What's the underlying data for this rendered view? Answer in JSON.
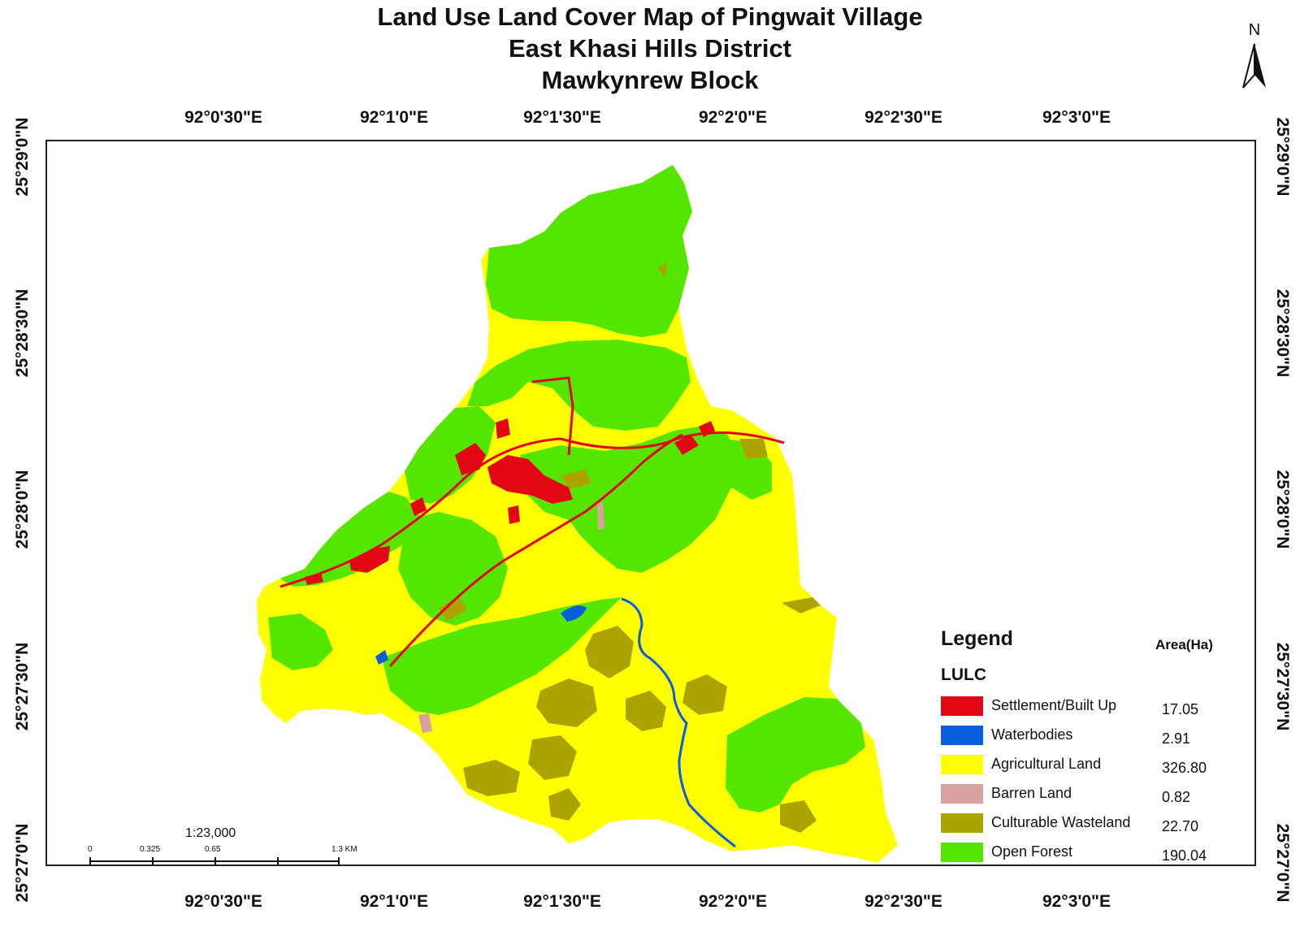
{
  "title": {
    "line1": "Land Use Land Cover Map of Pingwait Village",
    "line2": "East Khasi Hills District",
    "line3": "Mawkynrew Block"
  },
  "north_arrow": {
    "label": "N"
  },
  "axes": {
    "longitude_ticks": [
      "92°0'30\"E",
      "92°1'0\"E",
      "92°1'30\"E",
      "92°2'0\"E",
      "92°2'30\"E",
      "92°3'0\"E"
    ],
    "latitude_ticks": [
      "25°29'0\"N",
      "25°28'30\"N",
      "25°28'0\"N",
      "25°27'30\"N",
      "25°27'0\"N"
    ]
  },
  "legend": {
    "title": "Legend",
    "subtitle": "LULC",
    "area_header": "Area(Ha)",
    "items": [
      {
        "label": "Settlement/Built Up",
        "area": "17.05",
        "color": "#e30613"
      },
      {
        "label": "Waterbodies",
        "area": "2.91",
        "color": "#0a5ede"
      },
      {
        "label": "Agricultural Land",
        "area": "326.80",
        "color": "#ffff00"
      },
      {
        "label": "Barren Land",
        "area": "0.82",
        "color": "#d8a2a0"
      },
      {
        "label": "Culturable Wasteland",
        "area": "22.70",
        "color": "#aba400"
      },
      {
        "label": "Open Forest",
        "area": "190.04",
        "color": "#55e600"
      }
    ]
  },
  "scale": {
    "ratio": "1:23,000",
    "labels": [
      "0",
      "0.325",
      "0.65",
      "1.3 KM"
    ]
  }
}
